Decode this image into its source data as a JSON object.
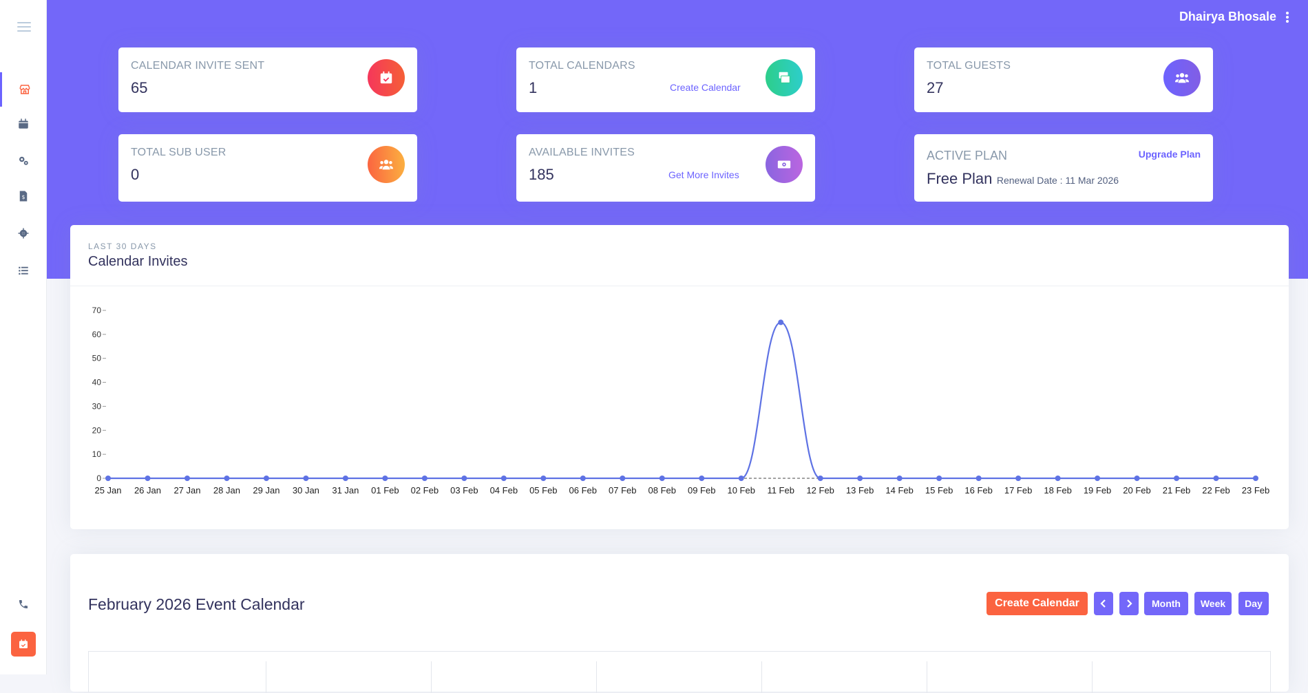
{
  "header": {
    "user_name": "Dhairya Bhosale"
  },
  "sidebar": {
    "items": [
      {
        "icon": "store-icon",
        "active": true
      },
      {
        "icon": "calendar-icon",
        "active": false
      },
      {
        "icon": "gears-icon",
        "active": false
      },
      {
        "icon": "file-invoice-dollar-icon",
        "active": false
      },
      {
        "icon": "gear-icon",
        "active": false
      },
      {
        "icon": "list-icon",
        "active": false
      }
    ],
    "footer_icons": [
      "phone-icon",
      "calendar-check-icon"
    ]
  },
  "stats": [
    {
      "label": "CALENDAR INVITE SENT",
      "value": "65",
      "link": "",
      "icon": "calendar-check-icon",
      "color": "#f5365c"
    },
    {
      "label": "TOTAL CALENDARS",
      "value": "1",
      "link": "Create Calendar",
      "icon": "calendar-stack-icon",
      "color": "#2dce89"
    },
    {
      "label": "TOTAL GUESTS",
      "value": "27",
      "link": "",
      "icon": "users-icon",
      "color": "#6c63ff"
    },
    {
      "label": "TOTAL SUB USER",
      "value": "0",
      "link": "",
      "icon": "users-icon",
      "color": "#fb6340"
    },
    {
      "label": "AVAILABLE INVITES",
      "value": "185",
      "link": "Get More Invites",
      "icon": "money-bill-icon",
      "color": "#8965e0"
    }
  ],
  "plan": {
    "label": "ACTIVE PLAN",
    "upgrade": "Upgrade Plan",
    "name": "Free Plan",
    "renewal": "Renewal Date : 11 Mar 2026"
  },
  "chart_card": {
    "subtitle": "LAST 30 DAYS",
    "title": "Calendar Invites"
  },
  "chart_data": {
    "type": "line",
    "title": "Calendar Invites",
    "xlabel": "",
    "ylabel": "",
    "ylim": [
      0,
      70
    ],
    "yticks": [
      0,
      10,
      20,
      30,
      40,
      50,
      60,
      70
    ],
    "grid": false,
    "categories": [
      "25 Jan",
      "26 Jan",
      "27 Jan",
      "28 Jan",
      "29 Jan",
      "30 Jan",
      "31 Jan",
      "01 Feb",
      "02 Feb",
      "03 Feb",
      "04 Feb",
      "05 Feb",
      "06 Feb",
      "07 Feb",
      "08 Feb",
      "09 Feb",
      "10 Feb",
      "11 Feb",
      "12 Feb",
      "13 Feb",
      "14 Feb",
      "15 Feb",
      "16 Feb",
      "17 Feb",
      "18 Feb",
      "19 Feb",
      "20 Feb",
      "21 Feb",
      "22 Feb",
      "23 Feb"
    ],
    "series": [
      {
        "values": [
          0,
          0,
          0,
          0,
          0,
          0,
          0,
          0,
          0,
          0,
          0,
          0,
          0,
          0,
          0,
          0,
          0,
          65,
          0,
          0,
          0,
          0,
          0,
          0,
          0,
          0,
          0,
          0,
          0,
          0
        ],
        "color": "#5e72e4"
      }
    ]
  },
  "calendar": {
    "month": "February 2026",
    "title": "Event Calendar",
    "create_label": "Create Calendar",
    "prev_icon": "chevron-left-icon",
    "next_icon": "chevron-right-icon",
    "views": [
      "Month",
      "Week",
      "Day"
    ]
  }
}
